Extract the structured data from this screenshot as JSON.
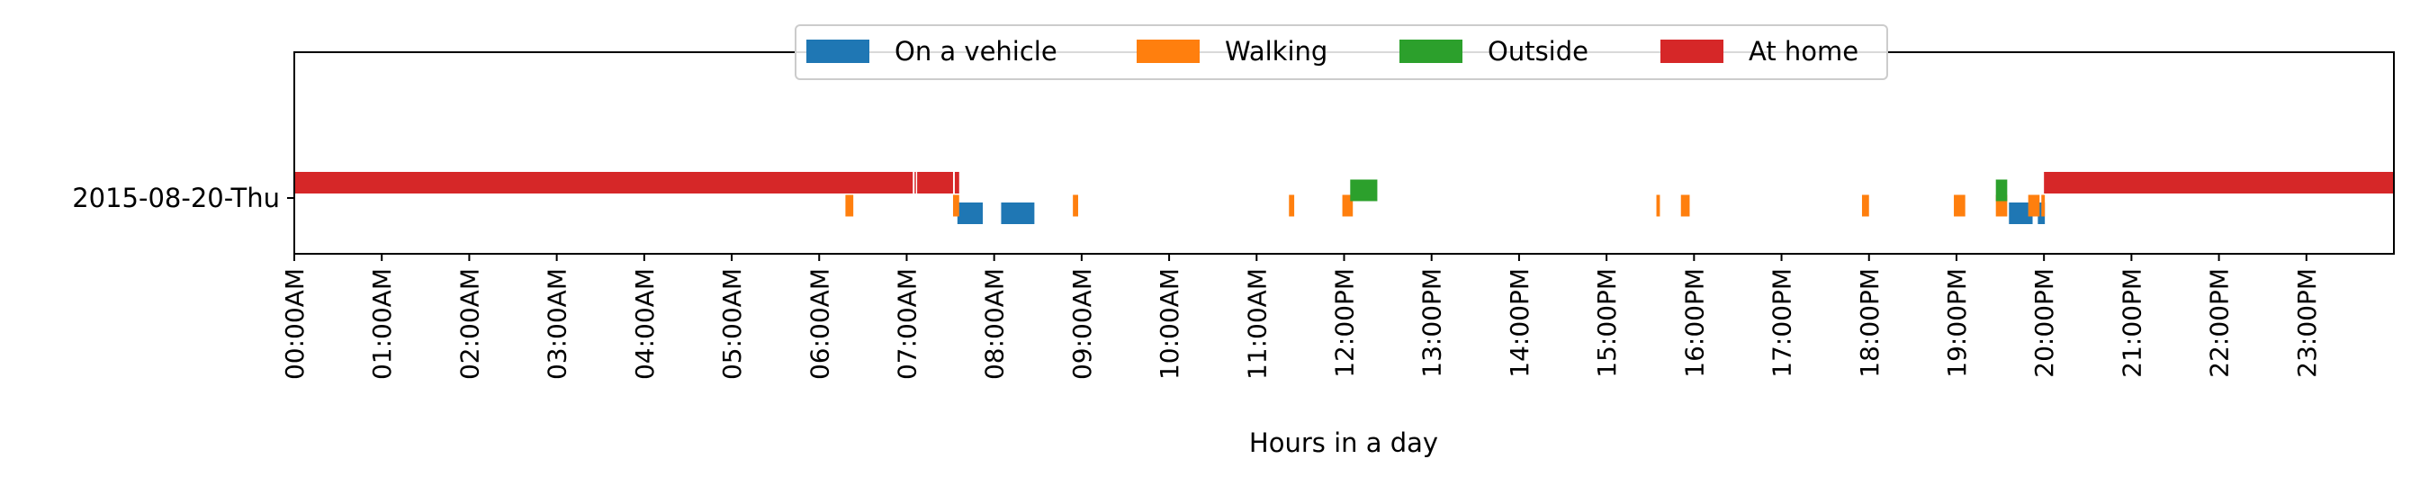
{
  "chart_data": {
    "type": "timeline",
    "title": "",
    "xlabel": "Hours in a day",
    "ylabel": "",
    "xlim": [
      0,
      24
    ],
    "x_unit": "hours",
    "rows": [
      "2015-08-20-Thu"
    ],
    "x_tick_labels": [
      "00:00AM",
      "01:00AM",
      "02:00AM",
      "03:00AM",
      "04:00AM",
      "05:00AM",
      "06:00AM",
      "07:00AM",
      "08:00AM",
      "09:00AM",
      "10:00AM",
      "11:00AM",
      "12:00PM",
      "13:00PM",
      "14:00PM",
      "15:00PM",
      "16:00PM",
      "17:00PM",
      "18:00PM",
      "19:00PM",
      "20:00PM",
      "21:00PM",
      "22:00PM",
      "23:00PM"
    ],
    "legend_position": "top-center",
    "series": [
      {
        "name": "On a vehicle",
        "color": "#1f77b4",
        "level": -1,
        "intervals": [
          [
            7.58,
            7.87
          ],
          [
            8.08,
            8.46
          ],
          [
            19.6,
            19.87
          ],
          [
            19.93,
            20.01
          ]
        ]
      },
      {
        "name": "Walking",
        "color": "#ff7f0e",
        "level": -0.5,
        "intervals": [
          [
            6.3,
            6.39
          ],
          [
            7.53,
            7.6
          ],
          [
            8.9,
            8.96
          ],
          [
            11.37,
            11.43
          ],
          [
            11.98,
            12.1
          ],
          [
            15.57,
            15.61
          ],
          [
            15.85,
            15.95
          ],
          [
            17.92,
            18.0
          ],
          [
            18.97,
            19.1
          ],
          [
            19.45,
            19.58
          ],
          [
            19.82,
            19.95
          ],
          [
            19.97,
            20.01
          ]
        ]
      },
      {
        "name": "Outside",
        "color": "#2ca02c",
        "level": 0.5,
        "intervals": [
          [
            12.07,
            12.38
          ],
          [
            19.45,
            19.58
          ]
        ]
      },
      {
        "name": "At home",
        "color": "#d62728",
        "level": 1,
        "intervals": [
          [
            0.0,
            7.07
          ],
          [
            7.09,
            7.1
          ],
          [
            7.12,
            7.53
          ],
          [
            7.55,
            7.6
          ],
          [
            20.0,
            24.0
          ]
        ]
      }
    ]
  }
}
